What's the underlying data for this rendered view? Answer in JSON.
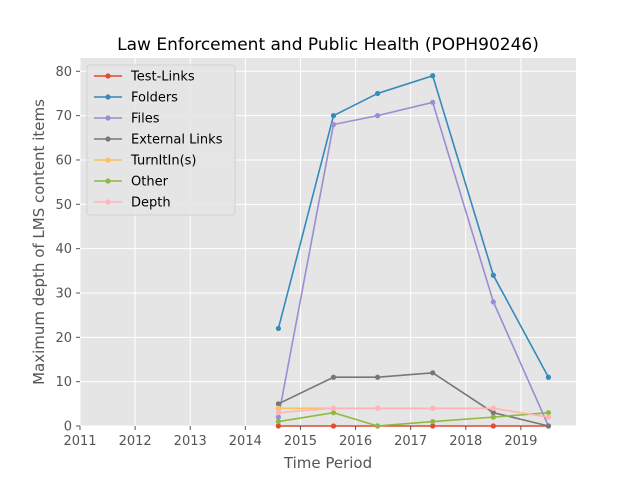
{
  "chart_data": {
    "type": "line",
    "title": "Law Enforcement and Public Health (POPH90246)",
    "xlabel": "Time Period",
    "ylabel": "Maximum depth of LMS content items",
    "xlim": [
      2011,
      2020
    ],
    "ylim": [
      0,
      83
    ],
    "xticks": [
      2011,
      2012,
      2013,
      2014,
      2015,
      2016,
      2017,
      2018,
      2019
    ],
    "yticks": [
      0,
      10,
      20,
      30,
      40,
      50,
      60,
      70,
      80
    ],
    "grid": true,
    "legend_position": "top-left",
    "x": [
      2014.6,
      2015.6,
      2016.4,
      2017.4,
      2018.5,
      2019.5
    ],
    "series": [
      {
        "name": "Test-Links",
        "color": "#e24a33",
        "values": [
          0,
          0,
          0,
          0,
          0,
          0
        ]
      },
      {
        "name": "Folders",
        "color": "#348abd",
        "values": [
          22,
          70,
          75,
          79,
          34,
          11
        ]
      },
      {
        "name": "Files",
        "color": "#988ed5",
        "values": [
          2,
          68,
          70,
          73,
          28,
          0
        ]
      },
      {
        "name": "External Links",
        "color": "#777777",
        "values": [
          5,
          11,
          11,
          12,
          3,
          0
        ]
      },
      {
        "name": "TurnItIn(s)",
        "color": "#fbc15e",
        "values": [
          4,
          4,
          4,
          4,
          4,
          2
        ]
      },
      {
        "name": "Other",
        "color": "#8eba42",
        "values": [
          1,
          3,
          0,
          1,
          2,
          3
        ]
      },
      {
        "name": "Depth",
        "color": "#ffb5b8",
        "values": [
          3,
          4,
          4,
          4,
          4,
          2
        ]
      }
    ]
  },
  "colors": {
    "plot_background": "#e5e5e5",
    "grid": "#ffffff",
    "tick_text": "#555555",
    "title_text": "#000000"
  }
}
